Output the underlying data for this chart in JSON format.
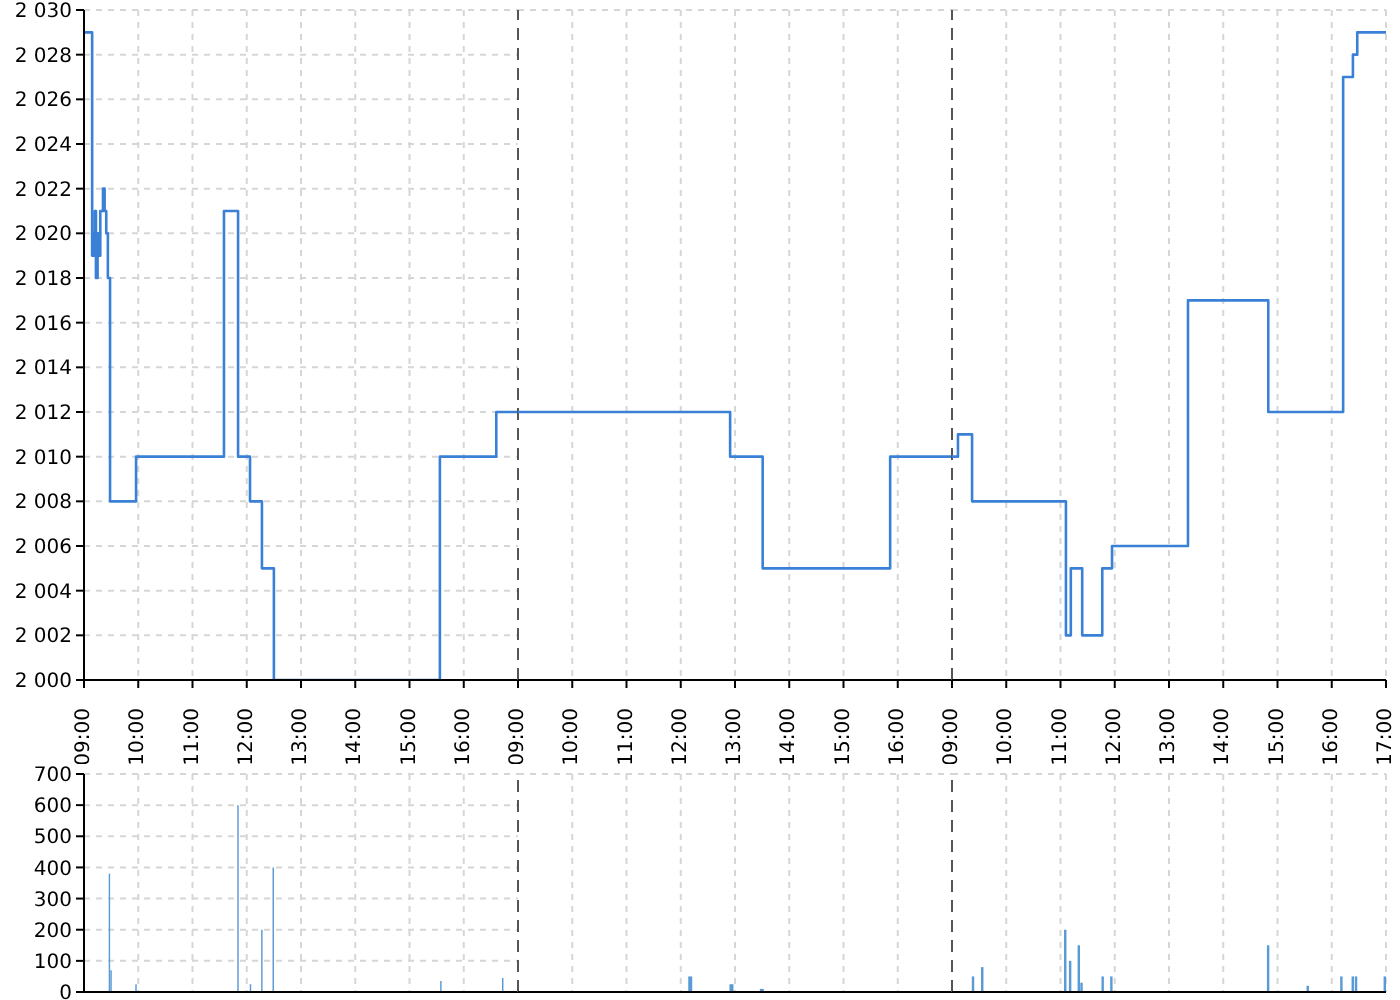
{
  "chart_data": [
    {
      "type": "step",
      "xlim": [
        9,
        17
      ],
      "xticks": [
        {
          "value": 9,
          "label": "09:00"
        },
        {
          "value": 10,
          "label": "10:00"
        },
        {
          "value": 11,
          "label": "11:00"
        },
        {
          "value": 12,
          "label": "12:00"
        },
        {
          "value": 13,
          "label": "13:00"
        },
        {
          "value": 14,
          "label": "14:00"
        },
        {
          "value": 15,
          "label": "15:00"
        },
        {
          "value": 16,
          "label": "16:00"
        }
      ],
      "ylim": [
        2000,
        2030
      ],
      "yticks": [
        {
          "value": 2000,
          "label": "2 000"
        },
        {
          "value": 2002,
          "label": "2 002"
        },
        {
          "value": 2004,
          "label": "2 004"
        },
        {
          "value": 2006,
          "label": "2 006"
        },
        {
          "value": 2008,
          "label": "2 008"
        },
        {
          "value": 2010,
          "label": "2 010"
        },
        {
          "value": 2012,
          "label": "2 012"
        },
        {
          "value": 2014,
          "label": "2 014"
        },
        {
          "value": 2016,
          "label": "2 016"
        },
        {
          "value": 2018,
          "label": "2 018"
        },
        {
          "value": 2020,
          "label": "2 020"
        },
        {
          "value": 2022,
          "label": "2 022"
        },
        {
          "value": 2024,
          "label": "2 024"
        },
        {
          "value": 2026,
          "label": "2 026"
        },
        {
          "value": 2028,
          "label": "2 028"
        },
        {
          "value": 2030,
          "label": "2 030"
        }
      ],
      "grid": true,
      "series": [
        {
          "color": "#3a80d6",
          "x": [
            9,
            9.15,
            9.18,
            9.2,
            9.22,
            9.25,
            9.27,
            9.3,
            9.35,
            9.38,
            9.41,
            9.44,
            9.48,
            9.96,
            11.58,
            11.84,
            12.06,
            12.28,
            12.5,
            15.56,
            16.6,
            17
          ],
          "values": [
            2029,
            2019,
            2020,
            2021,
            2018,
            2020,
            2019,
            2021,
            2022,
            2021,
            2020,
            2018,
            2008,
            2010,
            2021,
            2010,
            2008,
            2005,
            2000,
            2010,
            2012,
            2012
          ]
        }
      ]
    },
    {
      "type": "step",
      "xlim": [
        9,
        17
      ],
      "xticks": [
        {
          "value": 9,
          "label": "09:00"
        },
        {
          "value": 10,
          "label": "10:00"
        },
        {
          "value": 11,
          "label": "11:00"
        },
        {
          "value": 12,
          "label": "12:00"
        },
        {
          "value": 13,
          "label": "13:00"
        },
        {
          "value": 14,
          "label": "14:00"
        },
        {
          "value": 15,
          "label": "15:00"
        },
        {
          "value": 16,
          "label": "16:00"
        }
      ],
      "ylim": [
        2000,
        2030
      ],
      "yticks": [
        2000,
        2002,
        2004,
        2006,
        2008,
        2010,
        2012,
        2014,
        2016,
        2018,
        2020,
        2022,
        2024,
        2026,
        2028,
        2030
      ],
      "grid": true,
      "tick_labels": "x",
      "ref_lines": [
        {
          "axis": "x",
          "value": 9,
          "color": "#555555",
          "line_style": "dashed"
        }
      ],
      "series": [
        {
          "color": "#3a80d6",
          "x": [
            9,
            12.91,
            13.51,
            15.86,
            17
          ],
          "values": [
            2012,
            2010,
            2005,
            2010,
            2010
          ]
        }
      ]
    },
    {
      "type": "step",
      "xlim": [
        9,
        17
      ],
      "xticks": [
        {
          "value": 9,
          "label": "09:00"
        },
        {
          "value": 10,
          "label": "10:00"
        },
        {
          "value": 11,
          "label": "11:00"
        },
        {
          "value": 12,
          "label": "12:00"
        },
        {
          "value": 13,
          "label": "13:00"
        },
        {
          "value": 14,
          "label": "14:00"
        },
        {
          "value": 15,
          "label": "15:00"
        },
        {
          "value": 16,
          "label": "16:00"
        },
        {
          "value": 17,
          "label": "17:00"
        }
      ],
      "ylim": [
        2000,
        2030
      ],
      "yticks": [
        2000,
        2002,
        2004,
        2006,
        2008,
        2010,
        2012,
        2014,
        2016,
        2018,
        2020,
        2022,
        2024,
        2026,
        2028,
        2030
      ],
      "grid": true,
      "tick_labels": "x",
      "ref_lines": [
        {
          "axis": "x",
          "value": 9,
          "color": "#555555",
          "line_style": "dashed"
        }
      ],
      "series": [
        {
          "color": "#3a80d6",
          "x": [
            9,
            9.11,
            9.37,
            11.1,
            11.19,
            11.4,
            11.77,
            11.95,
            13.35,
            14.83,
            16.21,
            16.39,
            16.47,
            17
          ],
          "values": [
            2010,
            2011,
            2008,
            2002,
            2005,
            2002,
            2005,
            2006,
            2017,
            2012,
            2027,
            2028,
            2029,
            2029
          ]
        }
      ]
    },
    {
      "type": "bar",
      "xlim": [
        9,
        17
      ],
      "xticks": [
        {
          "value": 9,
          "label": null
        },
        {
          "value": 10,
          "label": null
        },
        {
          "value": 11,
          "label": null
        },
        {
          "value": 12,
          "label": null
        },
        {
          "value": 13,
          "label": null
        },
        {
          "value": 14,
          "label": null
        },
        {
          "value": 15,
          "label": null
        },
        {
          "value": 16,
          "label": null
        }
      ],
      "ylim": [
        0,
        700
      ],
      "yticks": [
        0,
        100,
        200,
        300,
        400,
        500,
        600,
        700
      ],
      "grid": true,
      "tick_labels": "y",
      "series": [
        {
          "color": "#5b9bd5",
          "x": [
            9.47,
            9.5,
            9.96,
            11.84,
            12.07,
            12.28,
            12.49,
            15.58,
            16.6,
            16.72
          ],
          "values": [
            380,
            70,
            25,
            600,
            25,
            200,
            400,
            35,
            null,
            45
          ]
        }
      ]
    },
    {
      "type": "bar",
      "xlim": [
        9,
        17
      ],
      "xticks": [
        {
          "value": 9,
          "label": null
        },
        {
          "value": 10,
          "label": null
        },
        {
          "value": 11,
          "label": null
        },
        {
          "value": 12,
          "label": null
        },
        {
          "value": 13,
          "label": null
        },
        {
          "value": 14,
          "label": null
        },
        {
          "value": 15,
          "label": null
        },
        {
          "value": 16,
          "label": null
        }
      ],
      "ylim": [
        0,
        700
      ],
      "yticks": [
        0,
        100,
        200,
        300,
        400,
        500,
        600,
        700
      ],
      "grid": true,
      "tick_labels": false,
      "ref_lines": [
        {
          "axis": "x",
          "value": 9,
          "color": "#555555",
          "line_style": "dashed"
        }
      ],
      "series": [
        {
          "color": "#5b9bd5",
          "x": [
            12.16,
            12.92,
            13.48
          ],
          "values": [
            50,
            25,
            10
          ]
        }
      ]
    },
    {
      "type": "bar",
      "xlim": [
        9,
        17
      ],
      "xticks": [
        {
          "value": 9,
          "label": null
        },
        {
          "value": 10,
          "label": null
        },
        {
          "value": 11,
          "label": null
        },
        {
          "value": 12,
          "label": null
        },
        {
          "value": 13,
          "label": null
        },
        {
          "value": 14,
          "label": null
        },
        {
          "value": 15,
          "label": null
        },
        {
          "value": 16,
          "label": null
        },
        {
          "value": 17,
          "label": null
        }
      ],
      "ylim": [
        0,
        700
      ],
      "yticks": [
        0,
        100,
        200,
        300,
        400,
        500,
        600,
        700
      ],
      "grid": true,
      "tick_labels": false,
      "ref_lines": [
        {
          "axis": "x",
          "value": 9,
          "color": "#555555",
          "line_style": "dashed"
        }
      ],
      "series": [
        {
          "color": "#5b9bd5",
          "x": [
            9.39,
            9.56,
            11.09,
            11.18,
            11.34,
            11.39,
            11.78,
            11.94,
            13.35,
            14.83,
            15.56,
            16.18,
            16.39,
            16.45,
            16.98
          ],
          "values": [
            50,
            80,
            200,
            100,
            150,
            30,
            50,
            50,
            null,
            150,
            20,
            50,
            50,
            50,
            50
          ]
        }
      ]
    }
  ]
}
